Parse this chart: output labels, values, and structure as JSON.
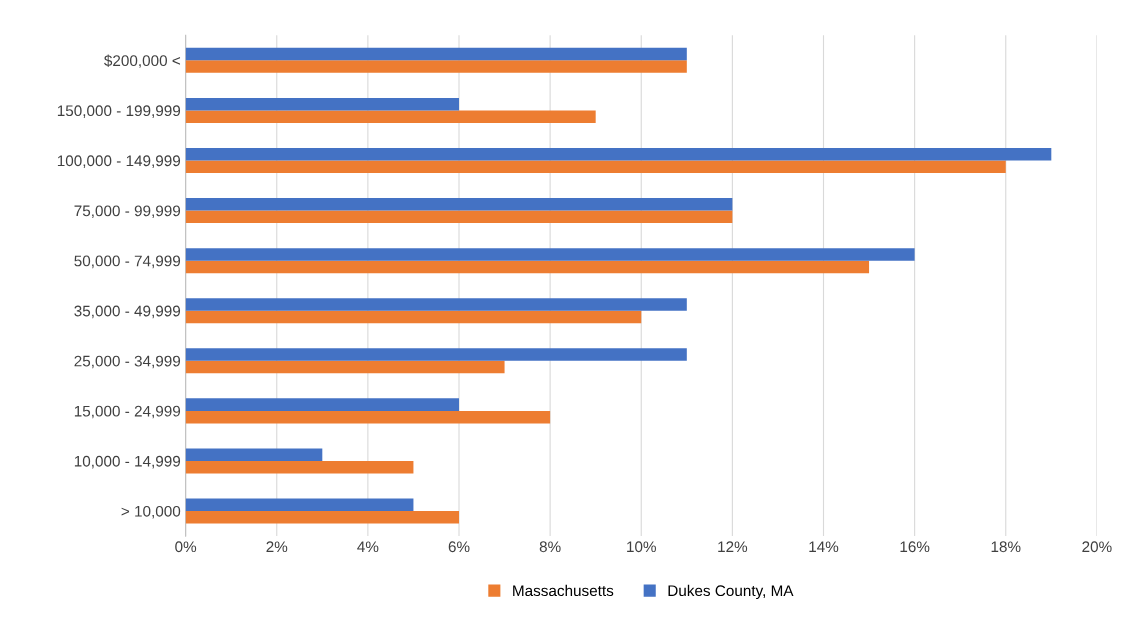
{
  "chart_data": {
    "type": "bar",
    "orientation": "horizontal",
    "categories": [
      "$200,000 <",
      "150,000 - 199,999",
      "100,000 - 149,999",
      "75,000 - 99,999",
      "50,000 - 74,999",
      "35,000 - 49,999",
      "25,000 - 34,999",
      "15,000 - 24,999",
      "10,000 - 14,999",
      "> 10,000"
    ],
    "series": [
      {
        "name": "Massachusetts",
        "color": "#ed7d31",
        "values": [
          11,
          9,
          18,
          12,
          15,
          10,
          7,
          8,
          5,
          6
        ]
      },
      {
        "name": "Dukes County, MA",
        "color": "#4472c4",
        "values": [
          11,
          6,
          19,
          12,
          16,
          11,
          11,
          6,
          3,
          5
        ]
      }
    ],
    "xlim": [
      0,
      20
    ],
    "xticks": [
      {
        "value": 0,
        "label": "0%"
      },
      {
        "value": 2,
        "label": "2%"
      },
      {
        "value": 4,
        "label": "4%"
      },
      {
        "value": 6,
        "label": "6%"
      },
      {
        "value": 8,
        "label": "8%"
      },
      {
        "value": 10,
        "label": "10%"
      },
      {
        "value": 12,
        "label": "12%"
      },
      {
        "value": 14,
        "label": "14%"
      },
      {
        "value": 16,
        "label": "16%"
      },
      {
        "value": 18,
        "label": "18%"
      },
      {
        "value": 20,
        "label": "20%"
      }
    ],
    "grid": "x",
    "legend": "bottom"
  }
}
